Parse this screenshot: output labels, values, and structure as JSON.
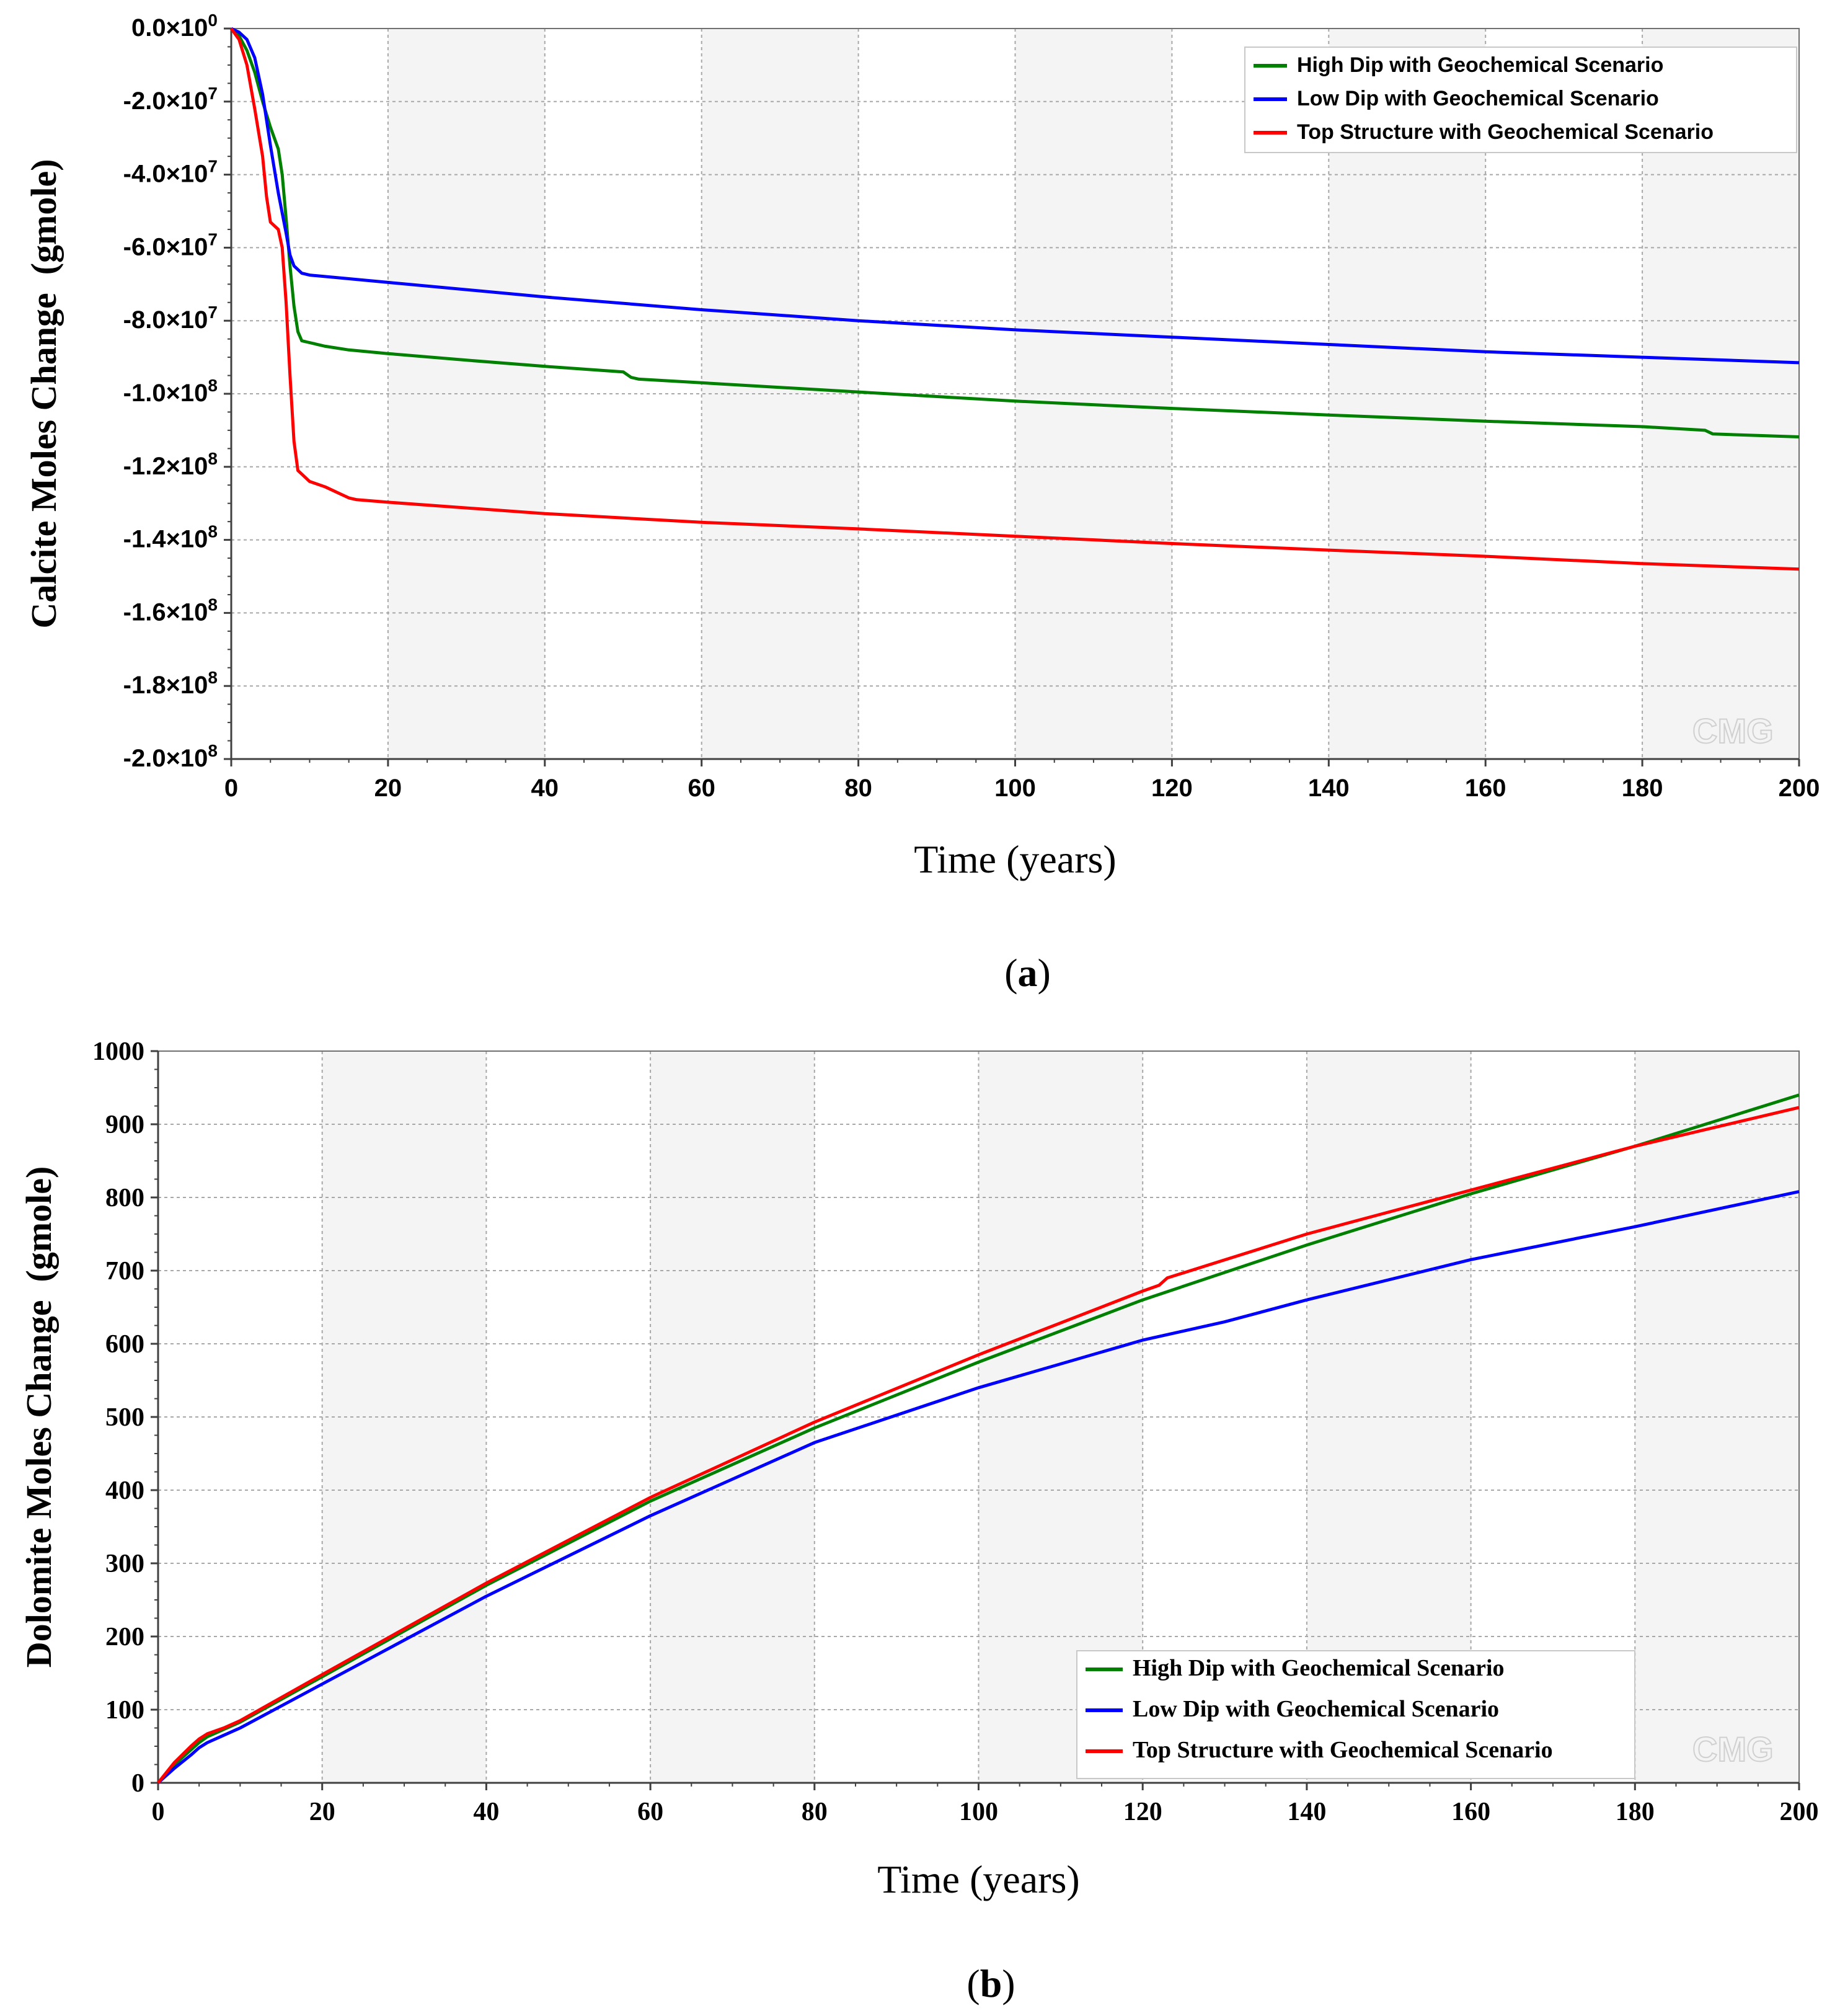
{
  "chart_data": [
    {
      "id": "a",
      "type": "line",
      "panel_label": "a",
      "title": "",
      "xlabel": "Time (years)",
      "ylabel": "Calcite Moles Change  (gmole)",
      "xlim": [
        0,
        200
      ],
      "ylim": [
        -200000000,
        0
      ],
      "x_ticks": [
        0,
        20,
        40,
        60,
        80,
        100,
        120,
        140,
        160,
        180,
        200
      ],
      "y_ticks": [
        0,
        -20000000,
        -40000000,
        -60000000,
        -80000000,
        -100000000,
        -120000000,
        -140000000,
        -160000000,
        -180000000,
        -200000000
      ],
      "y_tick_labels": [
        {
          "mant": "0.0×10",
          "exp": "0"
        },
        {
          "mant": "-2.0×10",
          "exp": "7"
        },
        {
          "mant": "-4.0×10",
          "exp": "7"
        },
        {
          "mant": "-6.0×10",
          "exp": "7"
        },
        {
          "mant": "-8.0×10",
          "exp": "7"
        },
        {
          "mant": "-1.0×10",
          "exp": "8"
        },
        {
          "mant": "-1.2×10",
          "exp": "8"
        },
        {
          "mant": "-1.4×10",
          "exp": "8"
        },
        {
          "mant": "-1.6×10",
          "exp": "8"
        },
        {
          "mant": "-1.8×10",
          "exp": "8"
        },
        {
          "mant": "-2.0×10",
          "exp": "8"
        }
      ],
      "grid": true,
      "legend_position": "top-right",
      "watermark": "CMG",
      "series": [
        {
          "name": "High Dip with Geochemical Scenario",
          "color": "#008000",
          "x": [
            0,
            1,
            2,
            3,
            4,
            5,
            6,
            6.5,
            7,
            7.5,
            8,
            8.5,
            9,
            10,
            12,
            15,
            20,
            30,
            40,
            50,
            51,
            52,
            60,
            80,
            100,
            120,
            140,
            160,
            180,
            188,
            189,
            200
          ],
          "y": [
            0,
            -2000000,
            -6000000,
            -12000000,
            -20000000,
            -27000000,
            -33000000,
            -40000000,
            -52000000,
            -65000000,
            -76000000,
            -83000000,
            -85500000,
            -86000000,
            -87000000,
            -88000000,
            -89000000,
            -90800000,
            -92500000,
            -94000000,
            -95500000,
            -96000000,
            -97000000,
            -99500000,
            -102000000,
            -104000000,
            -105800000,
            -107500000,
            -109000000,
            -110000000,
            -111000000,
            -111800000
          ]
        },
        {
          "name": "Low Dip with Geochemical Scenario",
          "color": "#0000ff",
          "x": [
            0,
            1,
            2,
            3,
            4,
            5,
            6,
            7,
            7.5,
            8,
            9,
            10,
            20,
            40,
            60,
            80,
            100,
            120,
            140,
            160,
            180,
            200
          ],
          "y": [
            0,
            -1000000,
            -3000000,
            -8000000,
            -18000000,
            -32000000,
            -45000000,
            -56000000,
            -62000000,
            -65000000,
            -67000000,
            -67500000,
            -69500000,
            -73500000,
            -77000000,
            -80000000,
            -82500000,
            -84500000,
            -86500000,
            -88500000,
            -90000000,
            -91500000
          ]
        },
        {
          "name": "Top Structure with Geochemical Scenario",
          "color": "#ff0000",
          "x": [
            0,
            1,
            2,
            3,
            4,
            4.5,
            5,
            6,
            6.5,
            7,
            7.5,
            8,
            8.5,
            9,
            10,
            12,
            14,
            15,
            16,
            20,
            40,
            60,
            80,
            100,
            120,
            140,
            160,
            180,
            200
          ],
          "y": [
            0,
            -3000000,
            -10000000,
            -22000000,
            -35000000,
            -46000000,
            -53000000,
            -55000000,
            -60000000,
            -75000000,
            -95000000,
            -113000000,
            -121000000,
            -122000000,
            -124000000,
            -125500000,
            -127500000,
            -128500000,
            -129000000,
            -129700000,
            -132800000,
            -135200000,
            -137000000,
            -139000000,
            -141000000,
            -142800000,
            -144500000,
            -146500000,
            -148000000
          ]
        }
      ]
    },
    {
      "id": "b",
      "type": "line",
      "panel_label": "b",
      "title": "",
      "xlabel": "Time (years)",
      "ylabel": "Dolomite Moles Change  (gmole)",
      "xlim": [
        0,
        200
      ],
      "ylim": [
        0,
        1000
      ],
      "x_ticks": [
        0,
        20,
        40,
        60,
        80,
        100,
        120,
        140,
        160,
        180,
        200
      ],
      "y_ticks": [
        0,
        100,
        200,
        300,
        400,
        500,
        600,
        700,
        800,
        900,
        1000
      ],
      "grid": true,
      "legend_position": "bottom-right",
      "watermark": "CMG",
      "series": [
        {
          "name": "High Dip with Geochemical Scenario",
          "color": "#008000",
          "x": [
            0,
            2,
            4,
            5,
            6,
            8,
            10,
            20,
            40,
            60,
            80,
            100,
            120,
            140,
            160,
            180,
            200
          ],
          "y": [
            0,
            25,
            45,
            55,
            63,
            73,
            83,
            145,
            270,
            385,
            485,
            575,
            660,
            735,
            805,
            870,
            940
          ]
        },
        {
          "name": "Low Dip with Geochemical Scenario",
          "color": "#0000ff",
          "x": [
            0,
            2,
            4,
            5,
            6,
            8,
            10,
            20,
            40,
            60,
            80,
            100,
            120,
            130,
            140,
            160,
            180,
            200
          ],
          "y": [
            0,
            20,
            38,
            48,
            55,
            65,
            75,
            135,
            255,
            365,
            465,
            540,
            605,
            630,
            660,
            715,
            760,
            808
          ]
        },
        {
          "name": "Top Structure with Geochemical Scenario",
          "color": "#ff0000",
          "x": [
            0,
            2,
            4,
            5,
            6,
            8,
            10,
            20,
            40,
            60,
            80,
            100,
            120,
            122,
            123,
            140,
            160,
            180,
            200
          ],
          "y": [
            0,
            28,
            50,
            60,
            67,
            75,
            85,
            148,
            273,
            390,
            493,
            585,
            672,
            680,
            690,
            750,
            810,
            870,
            923
          ]
        }
      ]
    }
  ]
}
